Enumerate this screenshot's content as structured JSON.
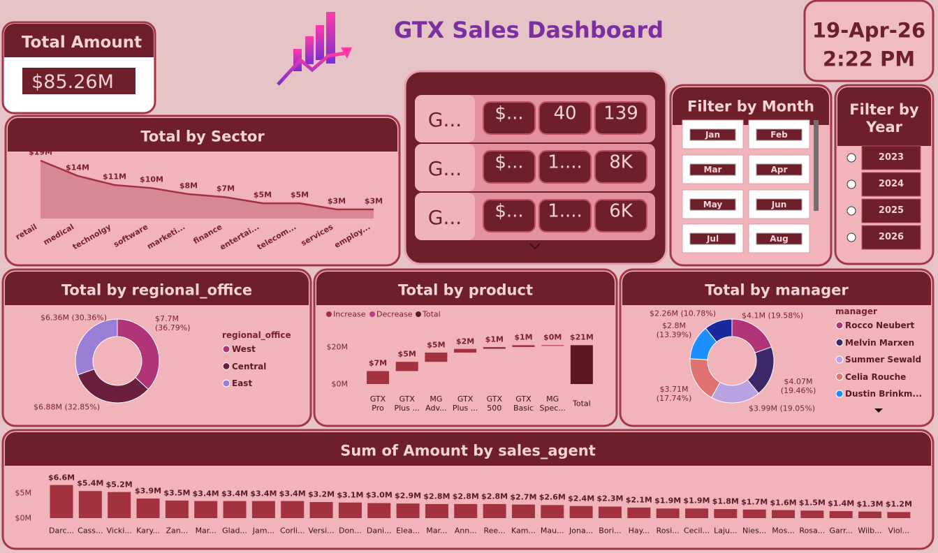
{
  "header": {
    "title": "GTX Sales Dashboard",
    "date": "19-Apr-26",
    "time": "2:22 PM"
  },
  "total_amount_card": {
    "label": "Total Amount",
    "value": "$85.26M"
  },
  "multi_row_card": {
    "rows": [
      [
        "G...",
        "$...",
        "40",
        "139"
      ],
      [
        "G...",
        "$...",
        "1....",
        "8K"
      ],
      [
        "G...",
        "$...",
        "1....",
        "6K"
      ]
    ]
  },
  "month_filter": {
    "title": "Filter by Month",
    "items": [
      "Jan",
      "Feb",
      "Mar",
      "Apr",
      "May",
      "Jun",
      "Jul",
      "Aug"
    ]
  },
  "year_filter": {
    "title": "Filter by Year",
    "items": [
      "2023",
      "2024",
      "2025",
      "2026"
    ]
  },
  "chart_data": [
    {
      "type": "area",
      "title": "Total by Sector",
      "categories": [
        "retail",
        "medical",
        "technolgy",
        "software",
        "marketi...",
        "finance",
        "entertai...",
        "telecom...",
        "services",
        "employ..."
      ],
      "values": [
        19,
        14,
        11,
        10,
        8,
        7,
        5,
        5,
        3,
        3
      ],
      "value_labels": [
        "$19M",
        "$14M",
        "$11M",
        "$10M",
        "$8M",
        "$7M",
        "$5M",
        "$5M",
        "$3M",
        "$3M"
      ],
      "color": "#a3323f"
    },
    {
      "type": "donut",
      "title": "Total by regional_office",
      "legend_title": "regional_office",
      "categories": [
        "West",
        "Central",
        "East"
      ],
      "values": [
        36.79,
        32.85,
        30.36
      ],
      "value_labels": [
        "$7.7M (36.79%)",
        "$6.88M (32.85%)",
        "$6.36M (30.36%)"
      ],
      "colors": [
        "#b03478",
        "#6a1f3e",
        "#9a7fd6"
      ]
    },
    {
      "type": "waterfall",
      "title": "Total by product",
      "legend": [
        {
          "name": "Increase",
          "color": "#a3323f"
        },
        {
          "name": "Decrease",
          "color": "#b23f7f"
        },
        {
          "name": "Total",
          "color": "#5c1822"
        }
      ],
      "categories": [
        "GTX Pro",
        "GTX Plus ...",
        "MG Adv...",
        "GTX Plus ...",
        "GTX 500",
        "GTX Basic",
        "MG Spec...",
        "Total"
      ],
      "values": [
        7,
        5,
        5,
        2,
        1,
        1,
        0,
        21
      ],
      "value_labels": [
        "$7M",
        "$5M",
        "$5M",
        "$2M",
        "$1M",
        "$1M",
        "$0M",
        "$21M"
      ],
      "ylim": [
        -2,
        26
      ],
      "yticks": [
        {
          "value": 0,
          "label": "$0M"
        },
        {
          "value": 20,
          "label": "$20M"
        }
      ]
    },
    {
      "type": "donut",
      "title": "Total by manager",
      "legend_title": "manager",
      "categories": [
        "Rocco Neubert",
        "Melvin Marxen",
        "Summer Sewald",
        "Celia Rouche",
        "Dustin Brinkm...",
        null
      ],
      "values": [
        19.58,
        19.46,
        19.05,
        17.74,
        13.39,
        10.78
      ],
      "value_labels": [
        "$4.1M (19.58%)",
        "$4.07M (19.46%)",
        "$3.99M (19.05%)",
        "$3.71M (17.74%)",
        "$2.8M (13.39%)",
        "$2.26M (10.78%)"
      ],
      "colors": [
        "#b03478",
        "#3a2868",
        "#b9a2e2",
        "#e07272",
        "#1e8fff",
        "#1a2a9c"
      ]
    },
    {
      "type": "bar",
      "title": "Sum of Amount by sales_agent",
      "categories": [
        "Darc...",
        "Cass...",
        "Vicki...",
        "Kary...",
        "Zan...",
        "Mar...",
        "Glad...",
        "Jam...",
        "Corli...",
        "Versi...",
        "Don...",
        "Dani...",
        "Elea...",
        "Mar...",
        "Ann...",
        "Ree...",
        "Kam...",
        "Mau...",
        "Jona...",
        "Bori...",
        "Hay...",
        "Rosi...",
        "Cecil...",
        "Laju...",
        "Nies...",
        "Mos...",
        "Rosa...",
        "Garr...",
        "Wilb...",
        "Viol..."
      ],
      "values": [
        6.6,
        5.4,
        5.2,
        3.9,
        3.5,
        3.4,
        3.4,
        3.4,
        3.4,
        3.2,
        3.1,
        3.0,
        2.9,
        2.8,
        2.8,
        2.8,
        2.7,
        2.6,
        2.4,
        2.3,
        2.1,
        1.9,
        1.9,
        1.8,
        1.7,
        1.6,
        1.5,
        1.4,
        1.3,
        1.2
      ],
      "value_labels": [
        "$6.6M",
        "$5.4M",
        "$5.2M",
        "$3.9M",
        "$3.5M",
        "$3.4M",
        "$3.4M",
        "$3.4M",
        "$3.4M",
        "$3.2M",
        "$3.1M",
        "$3.0M",
        "$2.9M",
        "$2.8M",
        "$2.8M",
        "$2.8M",
        "$2.7M",
        "$2.6M",
        "$2.4M",
        "$2.3M",
        "$2.1M",
        "$1.9M",
        "$1.9M",
        "$1.8M",
        "$1.7M",
        "$1.6M",
        "$1.5M",
        "$1.4M",
        "$1.3M",
        "$1.2M"
      ],
      "color": "#a3323f",
      "ylim": [
        0,
        8.5
      ],
      "yticks": [
        {
          "value": 0,
          "label": "$0M"
        },
        {
          "value": 5,
          "label": "$5M"
        }
      ]
    }
  ]
}
